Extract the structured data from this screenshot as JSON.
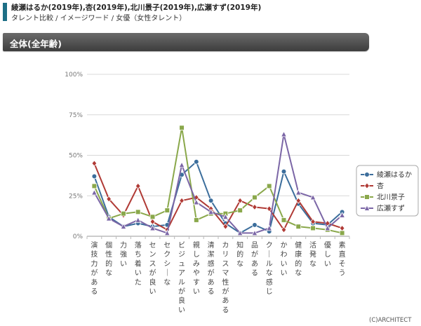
{
  "header": {
    "title": "綾瀬はるか(2019年),杏(2019年),北川景子(2019年),広瀬すず(2019年)",
    "subtitle": "タレント比較 / イメージワード / 女優（女性タレント）"
  },
  "section": {
    "title": "全体(全年齢)"
  },
  "footer": {
    "credit": "(C)ARCHITECT"
  },
  "chart_data": {
    "type": "line",
    "categories": [
      "演技力がある",
      "個性的な",
      "力強い",
      "落ち着いた",
      "センスが良い",
      "セクシーな",
      "ビジュアルが良い",
      "親しみやすい",
      "清潔感がある",
      "カリスマ性がある",
      "知的な",
      "品がある",
      "クールな感じ",
      "かわいい",
      "健康的な",
      "活発な",
      "優しい",
      "素直そう"
    ],
    "ylim": [
      0,
      100
    ],
    "yticks": [
      "0%",
      "25%",
      "50%",
      "75%",
      "100%"
    ],
    "legend_position": "right",
    "series": [
      {
        "name": "綾瀬はるか",
        "color": "#3c6e9c",
        "marker": "circle",
        "values": [
          37,
          12,
          6,
          8,
          6,
          7,
          38,
          46,
          22,
          8,
          2,
          7,
          3,
          40,
          20,
          8,
          7,
          15
        ]
      },
      {
        "name": "杏",
        "color": "#b03a35",
        "marker": "diamond",
        "values": [
          45,
          23,
          13,
          31,
          9,
          4,
          22,
          24,
          17,
          6,
          22,
          18,
          17,
          4,
          22,
          9,
          8,
          5
        ]
      },
      {
        "name": "北川景子",
        "color": "#8aa84b",
        "marker": "square",
        "values": [
          31,
          11,
          14,
          15,
          12,
          16,
          67,
          10,
          14,
          14,
          16,
          24,
          31,
          10,
          6,
          5,
          4,
          2
        ]
      },
      {
        "name": "広瀬すず",
        "color": "#7b66a6",
        "marker": "triangle",
        "values": [
          27,
          11,
          6,
          10,
          5,
          2,
          44,
          21,
          15,
          12,
          2,
          2,
          5,
          63,
          27,
          24,
          5,
          13
        ]
      }
    ]
  }
}
